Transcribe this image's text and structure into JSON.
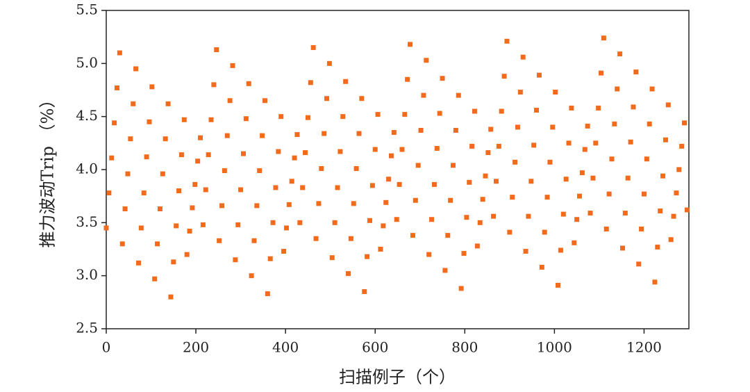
{
  "chart_data": {
    "type": "scatter",
    "xlabel": "扫描例子（个）",
    "ylabel": "推力波动Trip （%）",
    "color": "#f26a1b",
    "xlim": [
      0,
      1300
    ],
    "xticks": [
      0,
      200,
      400,
      600,
      800,
      1000,
      1200
    ],
    "ylim": [
      2.5,
      5.5
    ],
    "yticks": [
      2.5,
      {
        "value": 3,
        "label": "3.0"
      },
      3.5,
      {
        "value": 4,
        "label": "4.0"
      },
      4.5,
      {
        "value": 5,
        "label": "5.0"
      },
      5.5
    ],
    "x": [
      0,
      6,
      12,
      18,
      24,
      30,
      36,
      42,
      48,
      54,
      60,
      66,
      72,
      78,
      84,
      90,
      96,
      102,
      108,
      114,
      120,
      126,
      132,
      138,
      144,
      150,
      156,
      162,
      168,
      174,
      180,
      186,
      192,
      198,
      204,
      210,
      216,
      222,
      228,
      234,
      240,
      246,
      252,
      258,
      264,
      270,
      276,
      282,
      288,
      294,
      300,
      306,
      312,
      318,
      324,
      330,
      336,
      342,
      348,
      354,
      360,
      366,
      372,
      378,
      384,
      390,
      396,
      402,
      408,
      414,
      420,
      426,
      432,
      438,
      444,
      450,
      456,
      462,
      468,
      474,
      480,
      486,
      492,
      498,
      504,
      510,
      516,
      522,
      528,
      534,
      540,
      546,
      552,
      558,
      564,
      570,
      576,
      582,
      588,
      594,
      600,
      606,
      612,
      618,
      624,
      630,
      636,
      642,
      648,
      654,
      660,
      666,
      672,
      678,
      684,
      690,
      696,
      702,
      708,
      714,
      720,
      726,
      732,
      738,
      744,
      750,
      756,
      762,
      768,
      774,
      780,
      786,
      792,
      798,
      804,
      810,
      816,
      822,
      828,
      834,
      840,
      846,
      852,
      858,
      864,
      870,
      876,
      882,
      888,
      894,
      900,
      906,
      912,
      918,
      924,
      930,
      936,
      942,
      948,
      954,
      960,
      966,
      972,
      978,
      984,
      990,
      996,
      1002,
      1008,
      1014,
      1020,
      1026,
      1032,
      1038,
      1044,
      1050,
      1056,
      1062,
      1068,
      1074,
      1080,
      1086,
      1092,
      1098,
      1104,
      1110,
      1116,
      1122,
      1128,
      1134,
      1140,
      1146,
      1152,
      1158,
      1164,
      1170,
      1176,
      1182,
      1188,
      1194,
      1200,
      1206,
      1212,
      1218,
      1224,
      1230,
      1236,
      1242,
      1248,
      1254,
      1260,
      1266,
      1272,
      1278,
      1284,
      1290,
      1296
    ],
    "values": [
      3.45,
      3.78,
      4.11,
      4.44,
      4.77,
      5.1,
      3.3,
      3.63,
      3.96,
      4.29,
      4.62,
      4.95,
      3.12,
      3.45,
      3.78,
      4.12,
      4.45,
      4.78,
      2.97,
      3.3,
      3.63,
      3.96,
      4.29,
      4.62,
      2.8,
      3.13,
      3.47,
      3.8,
      4.14,
      4.47,
      3.2,
      3.42,
      3.64,
      3.86,
      4.08,
      4.3,
      3.48,
      3.81,
      4.14,
      4.47,
      4.8,
      5.13,
      3.33,
      3.66,
      3.99,
      4.32,
      4.65,
      4.98,
      3.15,
      3.48,
      3.81,
      4.15,
      4.48,
      4.81,
      3.0,
      3.33,
      3.66,
      3.99,
      4.32,
      4.65,
      2.83,
      3.16,
      3.5,
      3.83,
      4.17,
      4.5,
      3.23,
      3.45,
      3.67,
      3.89,
      4.11,
      4.33,
      3.5,
      3.83,
      4.16,
      4.49,
      4.82,
      5.15,
      3.35,
      3.68,
      4.01,
      4.34,
      4.67,
      5.0,
      3.17,
      3.5,
      3.83,
      4.17,
      4.5,
      4.83,
      3.02,
      3.35,
      3.68,
      4.01,
      4.34,
      4.67,
      2.85,
      3.18,
      3.52,
      3.85,
      4.19,
      4.52,
      3.25,
      3.47,
      3.69,
      3.91,
      4.13,
      4.35,
      3.53,
      3.86,
      4.19,
      4.52,
      4.85,
      5.18,
      3.38,
      3.71,
      4.04,
      4.37,
      4.7,
      5.03,
      3.2,
      3.53,
      3.86,
      4.2,
      4.53,
      4.86,
      3.05,
      3.38,
      3.71,
      4.04,
      4.37,
      4.7,
      2.88,
      3.21,
      3.55,
      3.88,
      4.22,
      4.55,
      3.28,
      3.5,
      3.72,
      3.94,
      4.16,
      4.38,
      3.56,
      3.89,
      4.22,
      4.55,
      4.88,
      5.21,
      3.41,
      3.74,
      4.07,
      4.4,
      4.73,
      5.06,
      3.23,
      3.56,
      3.89,
      4.23,
      4.56,
      4.89,
      3.08,
      3.41,
      3.74,
      4.07,
      4.4,
      4.73,
      2.91,
      3.24,
      3.58,
      3.91,
      4.25,
      4.58,
      3.31,
      3.53,
      3.75,
      3.97,
      4.19,
      4.41,
      3.59,
      3.92,
      4.25,
      4.58,
      4.91,
      5.24,
      3.44,
      3.77,
      4.1,
      4.43,
      4.76,
      5.09,
      3.26,
      3.59,
      3.92,
      4.26,
      4.59,
      4.92,
      3.11,
      3.44,
      3.77,
      4.1,
      4.43,
      4.76,
      2.94,
      3.27,
      3.61,
      3.94,
      4.28,
      4.61,
      3.34,
      3.56,
      3.78,
      4.0,
      4.22,
      4.44,
      3.62
    ]
  }
}
